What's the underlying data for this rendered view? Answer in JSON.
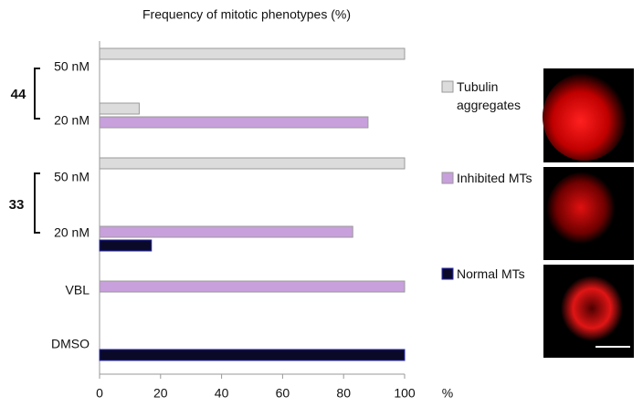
{
  "chart_data": {
    "type": "barh",
    "title": "Frequency of mitotic phenotypes (%)",
    "categories": [
      "50 nM",
      "20 nM",
      "50 nM",
      "20 nM",
      "VBL",
      "DMSO"
    ],
    "group_labels": [
      "44",
      "33"
    ],
    "series": [
      {
        "name": "Tubulin aggregates",
        "color": "#dcdcdc",
        "values": [
          100,
          13,
          100,
          0,
          0,
          0
        ]
      },
      {
        "name": "Inhibited MTs",
        "color": "#c8a0dc",
        "values": [
          0,
          88,
          0,
          83,
          100,
          0
        ]
      },
      {
        "name": "Normal MTs",
        "color": "#0a0a28",
        "values": [
          0,
          0,
          0,
          17,
          0,
          100
        ]
      }
    ],
    "xlabel": "%",
    "xlim": [
      0,
      100
    ],
    "xticks": [
      0,
      20,
      40,
      60,
      80,
      100
    ]
  }
}
